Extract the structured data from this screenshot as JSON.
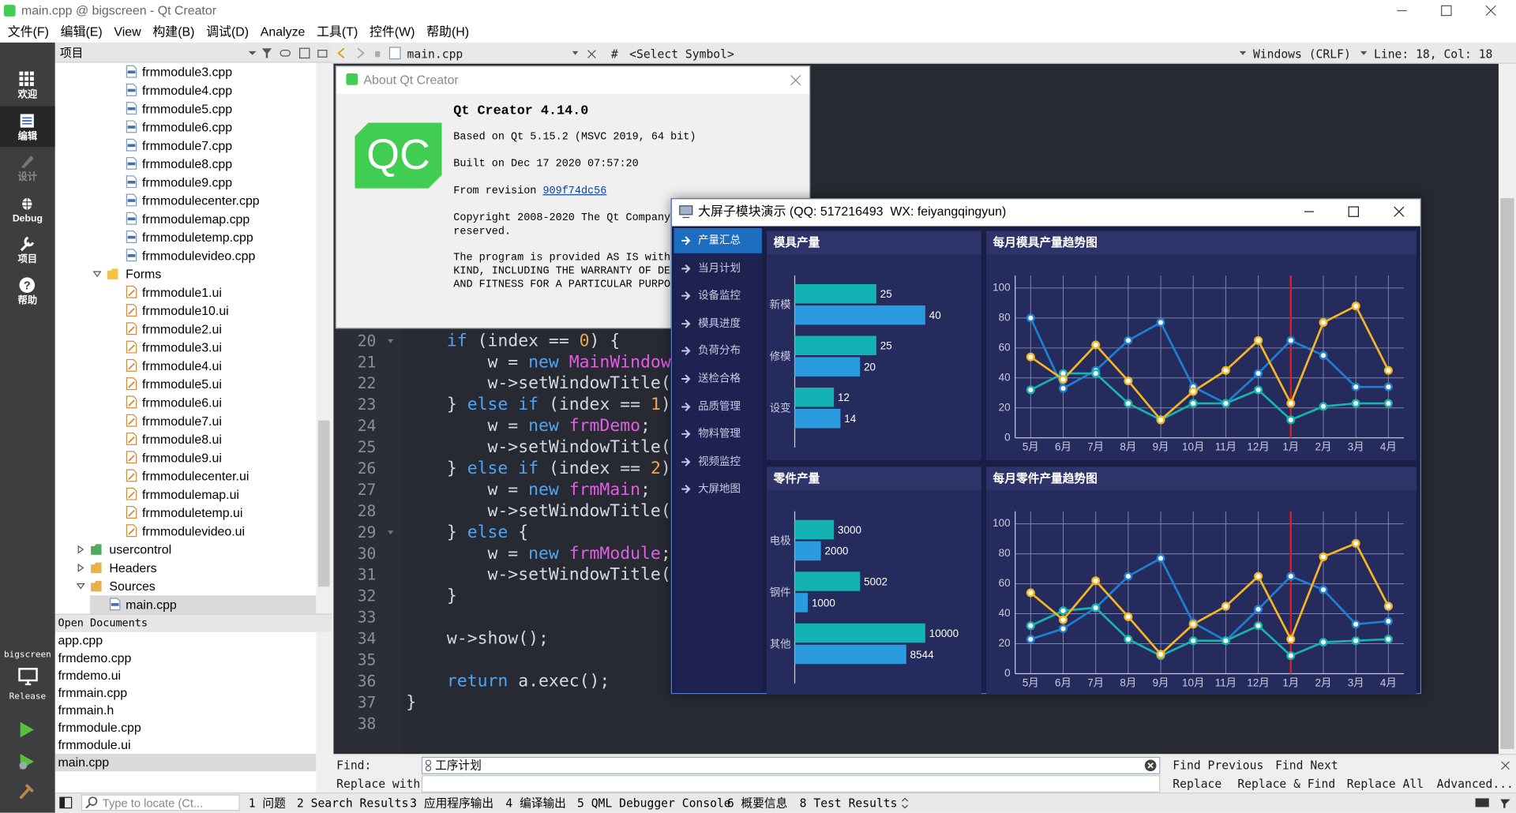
{
  "window": {
    "title": "main.cpp @ bigscreen - Qt Creator"
  },
  "menu": [
    "文件(F)",
    "编辑(E)",
    "View",
    "构建(B)",
    "调试(D)",
    "Analyze",
    "工具(T)",
    "控件(W)",
    "帮助(H)"
  ],
  "modes": [
    "欢迎",
    "编辑",
    "设计",
    "Debug",
    "项目",
    "帮助"
  ],
  "active_mode": "编辑",
  "kit": {
    "project": "bigscreen",
    "build": "Release"
  },
  "project_panel": {
    "title": "项目",
    "subproject": {
      "files": [
        "frmmodule3.cpp",
        "frmmodule4.cpp",
        "frmmodule5.cpp",
        "frmmodule6.cpp",
        "frmmodule7.cpp",
        "frmmodule8.cpp",
        "frmmodule9.cpp",
        "frmmodulecenter.cpp",
        "frmmodulemap.cpp",
        "frmmoduletemp.cpp",
        "frmmodulevideo.cpp"
      ],
      "folders": [
        {
          "label": "Forms",
          "expanded": true,
          "children": [
            "frmmodule1.ui",
            "frmmodule10.ui",
            "frmmodule2.ui",
            "frmmodule3.ui",
            "frmmodule4.ui",
            "frmmodule5.ui",
            "frmmodule6.ui",
            "frmmodule7.ui",
            "frmmodule8.ui",
            "frmmodule9.ui",
            "frmmodulecenter.ui",
            "frmmodulemap.ui",
            "frmmoduletemp.ui",
            "frmmodulevideo.ui"
          ]
        }
      ]
    },
    "folders": [
      {
        "label": "usercontrol",
        "expanded": false
      },
      {
        "label": "Headers",
        "expanded": false
      },
      {
        "label": "Sources",
        "expanded": true,
        "children": [
          "main.cpp"
        ]
      }
    ]
  },
  "open_documents": {
    "title": "Open Documents",
    "files": [
      "app.cpp",
      "frmdemo.cpp",
      "frmdemo.ui",
      "frmmain.cpp",
      "frmmain.h",
      "frmmodule.cpp",
      "frmmodule.ui",
      "main.cpp"
    ]
  },
  "editor": {
    "file": "main.cpp",
    "hash": "#",
    "symbol": "<Select Symbol>",
    "line_ending": "Windows (CRLF)",
    "position": "Line: 18, Col: 18",
    "lines": [
      {
        "number": 20,
        "text": "    if (index == 0) {"
      },
      {
        "number": 21,
        "text": "        w = new MainWindow"
      },
      {
        "number": 22,
        "text": "        w->setWindowTitle("
      },
      {
        "number": 23,
        "text": "    } else if (index == 1)"
      },
      {
        "number": 24,
        "text": "        w = new frmDemo;"
      },
      {
        "number": 25,
        "text": "        w->setWindowTitle("
      },
      {
        "number": 26,
        "text": "    } else if (index == 2)"
      },
      {
        "number": 27,
        "text": "        w = new frmMain;"
      },
      {
        "number": 28,
        "text": "        w->setWindowTitle("
      },
      {
        "number": 29,
        "text": "    } else {"
      },
      {
        "number": 30,
        "text": "        w = new frmModule;"
      },
      {
        "number": 31,
        "text": "        w->setWindowTitle("
      },
      {
        "number": 32,
        "text": "    }"
      },
      {
        "number": 33
      },
      {
        "number": 34,
        "text": "    w->show();"
      },
      {
        "number": 35
      },
      {
        "number": 36,
        "text": "    return a.exec();"
      },
      {
        "number": 37,
        "text": "}"
      },
      {
        "number": 38
      }
    ]
  },
  "about": {
    "title": "About Qt Creator",
    "logo": "QC",
    "heading": "Qt Creator 4.14.0",
    "based_on": "Based on Qt 5.15.2 (MSVC 2019, 64 bit)",
    "built_on": "Built on Dec 17 2020 07:57:20",
    "revision_label": "From revision ",
    "revision": "909f74dc56",
    "copyright": [
      "Copyright 2008-2020 The Qt Company",
      "reserved."
    ],
    "license": [
      "The program is provided AS IS with",
      "KIND, INCLUDING THE WARRANTY OF DES",
      "AND FITNESS FOR A PARTICULAR PURPOS"
    ]
  },
  "bigscreen": {
    "title": "大屏子模块演示 (QQ: 517216493  WX: feiyangqingyun)",
    "nav": [
      "产量汇总",
      "当月计划",
      "设备监控",
      "模具进度",
      "负荷分布",
      "送检合格",
      "品质管理",
      "物料管理",
      "视频监控",
      "大屏地图"
    ],
    "active": "产量汇总"
  },
  "chart_data": [
    {
      "type": "bar",
      "orientation": "horizontal",
      "title": "模具产量",
      "categories": [
        "新模",
        "修模",
        "设变"
      ],
      "series": [
        {
          "color": "#13b2b4",
          "values": [
            25,
            25,
            12
          ]
        },
        {
          "color": "#2b9be0",
          "values": [
            40,
            20,
            14
          ]
        }
      ]
    },
    {
      "type": "line",
      "title": "每月模具产量趋势图",
      "categories": [
        "5月",
        "6月",
        "7月",
        "8月",
        "9月",
        "10月",
        "11月",
        "12月",
        "1月",
        "2月",
        "3月",
        "4月"
      ],
      "series": [
        {
          "color": "#1f7fd1",
          "values": [
            80,
            33,
            45,
            65,
            77,
            34,
            23,
            43,
            65,
            55,
            34,
            34
          ]
        },
        {
          "color": "#17b3ad",
          "values": [
            32,
            43,
            43,
            23,
            12,
            23,
            23,
            32,
            12,
            21,
            23,
            23
          ]
        },
        {
          "color": "#f4b622",
          "values": [
            54,
            39,
            62,
            38,
            12,
            31,
            45,
            65,
            23,
            77,
            88,
            45
          ]
        }
      ],
      "ylim": [
        0,
        100
      ],
      "yticks": [
        0,
        20,
        40,
        60,
        80,
        100
      ],
      "grid": true,
      "highlight": {
        "category": "1月",
        "color": "#e31a1a"
      }
    },
    {
      "type": "bar",
      "orientation": "horizontal",
      "title": "零件产量",
      "categories": [
        "电极",
        "钢件",
        "其他"
      ],
      "series": [
        {
          "color": "#13b2b4",
          "values": [
            3000,
            5002,
            10000
          ]
        },
        {
          "color": "#2b9be0",
          "values": [
            2000,
            1000,
            8544
          ]
        }
      ]
    },
    {
      "type": "line",
      "title": "每月零件产量趋势图",
      "categories": [
        "5月",
        "6月",
        "7月",
        "8月",
        "9月",
        "10月",
        "11月",
        "12月",
        "1月",
        "2月",
        "3月",
        "4月"
      ],
      "series": [
        {
          "color": "#1f7fd1",
          "values": [
            23,
            30,
            44,
            65,
            77,
            34,
            22,
            43,
            65,
            56,
            33,
            35
          ]
        },
        {
          "color": "#17b3ad",
          "values": [
            32,
            42,
            44,
            23,
            12,
            22,
            22,
            32,
            12,
            21,
            22,
            23
          ]
        },
        {
          "color": "#f4b622",
          "values": [
            54,
            36,
            62,
            38,
            13,
            33,
            45,
            65,
            23,
            78,
            87,
            45
          ]
        }
      ],
      "ylim": [
        0,
        100
      ],
      "yticks": [
        0,
        20,
        40,
        60,
        80,
        100
      ],
      "grid": true,
      "highlight": {
        "category": "1月",
        "color": "#e31a1a"
      }
    }
  ],
  "find": {
    "find_label": "Find:",
    "replace_label": "Replace with:",
    "find_text": "工序计划",
    "buttons": [
      "Find Previous",
      "Find Next",
      "Replace",
      "Replace & Find",
      "Replace All",
      "Advanced..."
    ]
  },
  "status": {
    "locate": "Type to locate (Ct...",
    "tabs": [
      "1 问题",
      "2 Search Results",
      "3 应用程序输出",
      "4 编译输出",
      "5 QML Debugger Console",
      "6 概要信息",
      "8 Test Results"
    ]
  }
}
